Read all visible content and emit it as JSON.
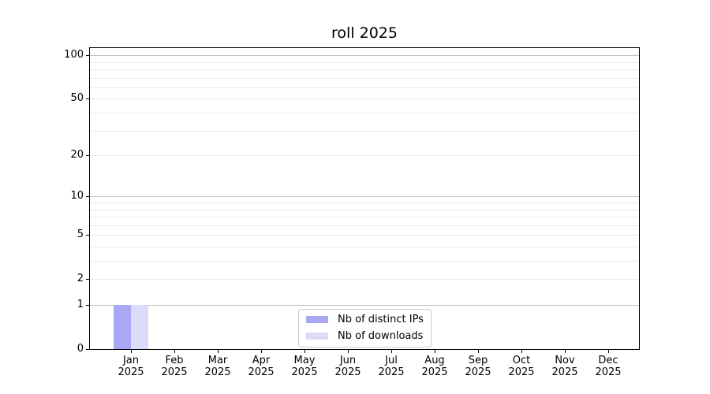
{
  "chart_data": {
    "type": "bar",
    "title": "roll 2025",
    "categories": [
      "Jan",
      "Feb",
      "Mar",
      "Apr",
      "May",
      "Jun",
      "Jul",
      "Aug",
      "Sep",
      "Oct",
      "Nov",
      "Dec"
    ],
    "category_year": "2025",
    "series": [
      {
        "name": "Nb of distinct IPs",
        "color": "#a8a8f4",
        "values": [
          1,
          0,
          0,
          0,
          0,
          0,
          0,
          0,
          0,
          0,
          0,
          0
        ]
      },
      {
        "name": "Nb of downloads",
        "color": "#dcdcf8",
        "values": [
          1,
          0,
          0,
          0,
          0,
          0,
          0,
          0,
          0,
          0,
          0,
          0
        ]
      }
    ],
    "yscale": "log1p",
    "ylim": [
      0,
      112
    ],
    "y_tick_labels": [
      0,
      1,
      2,
      5,
      10,
      20,
      50,
      100
    ],
    "y_major_gridlines": [
      1,
      10,
      100
    ],
    "y_minor_gridlines": [
      2,
      3,
      4,
      5,
      6,
      7,
      8,
      9,
      20,
      30,
      40,
      50,
      60,
      70,
      80,
      90
    ],
    "grid": true,
    "legend_position": "lower center inside plot"
  },
  "colors": {
    "background": "#ffffff",
    "axis": "#000000",
    "major_grid": "#c3c3c3",
    "minor_grid": "#e9e9e9",
    "legend_border": "#cccccc",
    "distinct_ips": "#a8a8f4",
    "downloads": "#dcdcf8"
  }
}
